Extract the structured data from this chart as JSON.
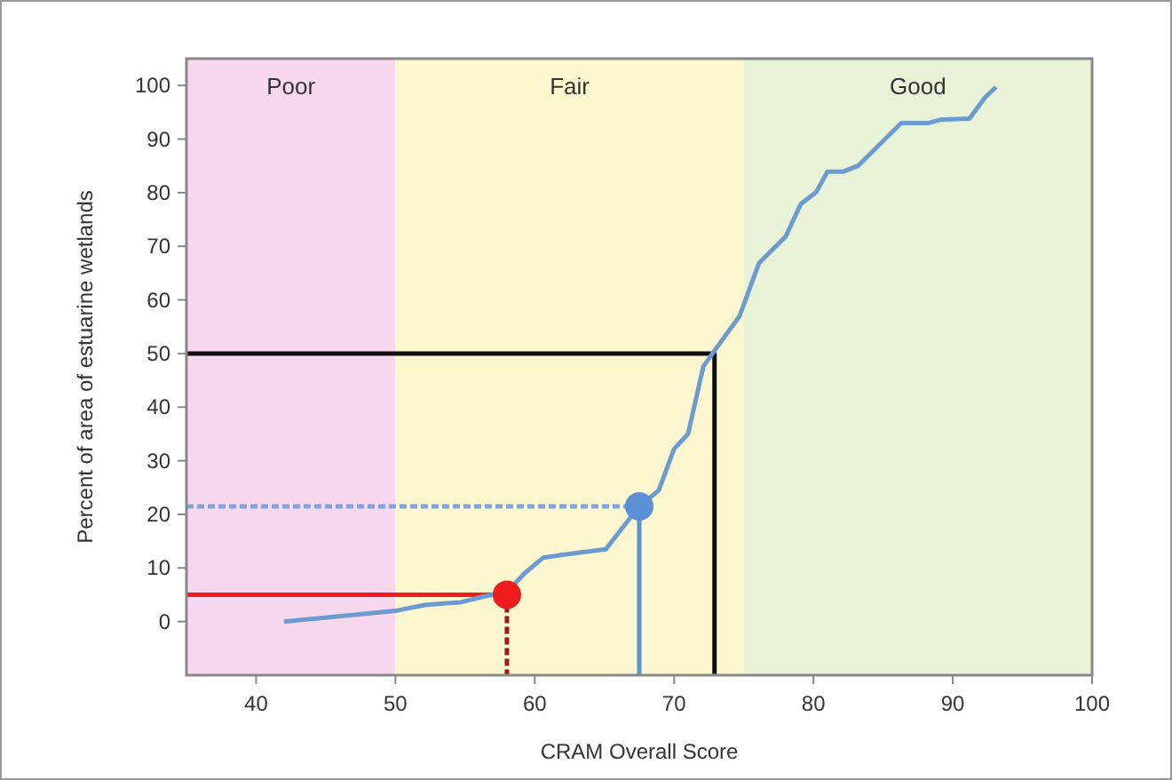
{
  "chart_data": {
    "type": "line",
    "xlabel": "CRAM Overall Score",
    "ylabel": "Percent of area of estuarine wetlands",
    "xlim": [
      35,
      100
    ],
    "xticks": [
      40,
      50,
      60,
      70,
      80,
      90,
      100
    ],
    "ylim": [
      -10,
      105
    ],
    "yticks": [
      0,
      10,
      20,
      30,
      40,
      50,
      60,
      70,
      80,
      90,
      100
    ],
    "grid": false,
    "marker": "none",
    "line_style": "solid",
    "bands": [
      {
        "axis": "x",
        "from": 35,
        "to": 50,
        "label": "Poor",
        "color": "#f7d8ee"
      },
      {
        "axis": "x",
        "from": 50,
        "to": 75,
        "label": "Fair",
        "color": "#fdf7d0"
      },
      {
        "axis": "x",
        "from": 75,
        "to": 100,
        "label": "Good",
        "color": "#e8f3d7"
      }
    ],
    "series": [
      {
        "color": "#111111",
        "x": [
          35,
          72.9,
          72.9
        ],
        "values": [
          50,
          50,
          -10
        ]
      },
      {
        "color": "#7ea6dc",
        "line_style": "dashed",
        "x": [
          35,
          67.5
        ],
        "values": [
          21.5,
          21.5
        ]
      },
      {
        "color": "#5b8fd6",
        "x": [
          67.5,
          67.5
        ],
        "values": [
          21.5,
          -10
        ]
      },
      {
        "color": "#ee1c1c",
        "x": [
          35,
          58
        ],
        "values": [
          5,
          5
        ]
      },
      {
        "color": "#9a1a1a",
        "line_style": "dashed",
        "x": [
          58,
          58
        ],
        "values": [
          5,
          -10
        ]
      },
      {
        "color": "#6c9bd2",
        "x": [
          42,
          50,
          52.1,
          54.7,
          56.4,
          58,
          59.3,
          60.6,
          61.9,
          63.6,
          65.1,
          67.4,
          68.9,
          70,
          71,
          72.1,
          72.7,
          74.7,
          76.1,
          78,
          79.1,
          80.2,
          81,
          82.1,
          83.2,
          86.3,
          88.3,
          89.1,
          91.2,
          92.3,
          93.1
        ],
        "values": [
          0,
          2,
          3.1,
          3.6,
          4.7,
          5.5,
          9.1,
          11.9,
          12.4,
          13,
          13.5,
          21.2,
          24.5,
          32.2,
          35,
          47.6,
          49.8,
          57,
          66.9,
          71.8,
          77.9,
          80.1,
          83.9,
          83.9,
          85,
          93,
          93,
          93.6,
          93.8,
          97.7,
          99.7
        ]
      },
      {
        "type": "scatter",
        "color": "#ee1c1c",
        "marker": "circle",
        "x": [
          58
        ],
        "values": [
          5
        ]
      },
      {
        "type": "scatter",
        "color": "#5b8fd6",
        "marker": "circle",
        "x": [
          67.5
        ],
        "values": [
          21.5
        ]
      }
    ]
  }
}
